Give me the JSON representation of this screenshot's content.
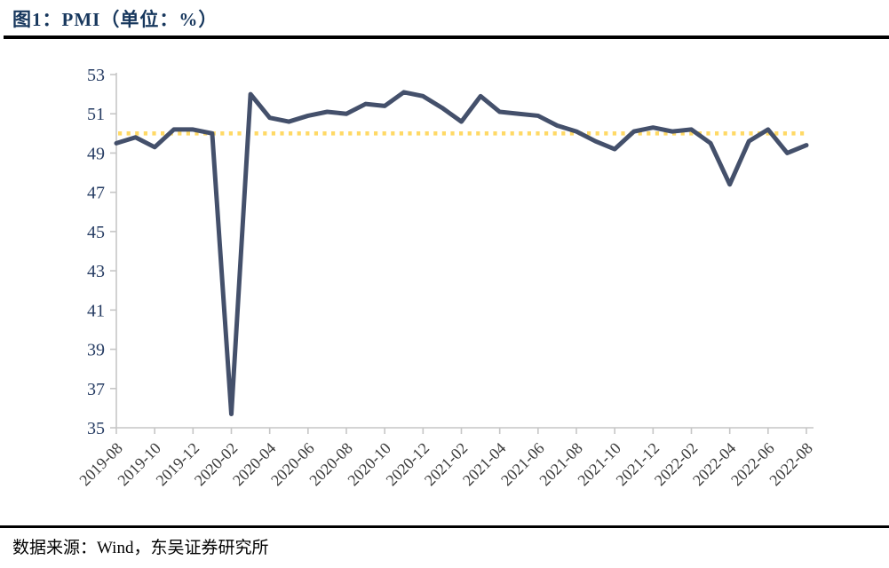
{
  "header": {
    "title": "图1：PMI（单位：%）"
  },
  "footer": {
    "source": "数据来源：Wind，东吴证券研究所"
  },
  "colors": {
    "title": "#17375D",
    "series_line": "#44506B",
    "reference_line": "#FFD966",
    "axis": "#C6C6C6",
    "y_tick_label": "#263C63",
    "x_tick_label": "#3B3B3B",
    "separator": "#000000"
  },
  "chart_data": {
    "type": "line",
    "title": "图1：PMI（单位：%）",
    "xlabel": "",
    "ylabel": "",
    "ylim": [
      35,
      53
    ],
    "ytick_step": 2,
    "grid": false,
    "legend_position": "none",
    "x": [
      "2019-08",
      "2019-09",
      "2019-10",
      "2019-11",
      "2019-12",
      "2020-01",
      "2020-02",
      "2020-03",
      "2020-04",
      "2020-05",
      "2020-06",
      "2020-07",
      "2020-08",
      "2020-09",
      "2020-10",
      "2020-11",
      "2020-12",
      "2021-01",
      "2021-02",
      "2021-03",
      "2021-04",
      "2021-05",
      "2021-06",
      "2021-07",
      "2021-08",
      "2021-09",
      "2021-10",
      "2021-11",
      "2021-12",
      "2022-01",
      "2022-02",
      "2022-03",
      "2022-04",
      "2022-05",
      "2022-06",
      "2022-07",
      "2022-08"
    ],
    "series": [
      {
        "name": "PMI",
        "values": [
          49.5,
          49.8,
          49.3,
          50.2,
          50.2,
          50.0,
          35.7,
          52.0,
          50.8,
          50.6,
          50.9,
          51.1,
          51.0,
          51.5,
          51.4,
          52.1,
          51.9,
          51.3,
          50.6,
          51.9,
          51.1,
          51.0,
          50.9,
          50.4,
          50.1,
          49.6,
          49.2,
          50.1,
          50.3,
          50.1,
          50.2,
          49.5,
          47.4,
          49.6,
          50.2,
          49.0,
          49.4
        ]
      }
    ],
    "xtick_labels": [
      "2019-08",
      "2019-10",
      "2019-12",
      "2020-02",
      "2020-04",
      "2020-06",
      "2020-08",
      "2020-10",
      "2020-12",
      "2021-02",
      "2021-04",
      "2021-06",
      "2021-08",
      "2021-10",
      "2021-12",
      "2022-02",
      "2022-04",
      "2022-06",
      "2022-08"
    ],
    "xtick_every": 2,
    "reference_line": {
      "value": 50,
      "style": "dotted"
    }
  }
}
